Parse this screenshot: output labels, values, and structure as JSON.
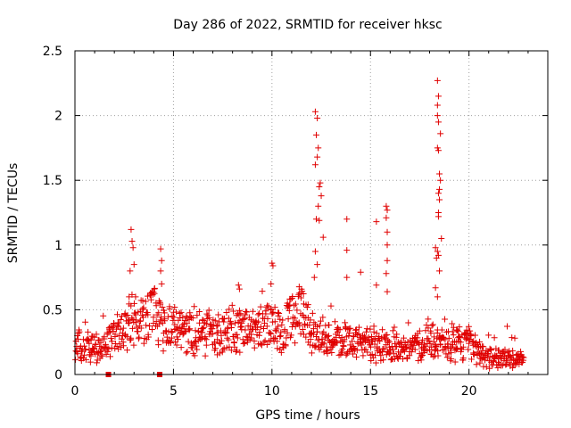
{
  "chart_data": {
    "type": "scatter",
    "title": "Day 286 of 2022, SRMTID for receiver hksc",
    "xlabel": "GPS time / hours",
    "ylabel": "SRMTID / TECUs",
    "xlim": [
      0,
      24
    ],
    "ylim": [
      0,
      2.5
    ],
    "x_ticks": [
      0,
      5,
      10,
      15,
      20
    ],
    "x_tick_labels": [
      "0",
      "5",
      "10",
      "15",
      "20"
    ],
    "y_ticks": [
      0,
      0.5,
      1,
      1.5,
      2,
      2.5
    ],
    "y_tick_labels": [
      "0",
      "0.5",
      "1",
      "1.5",
      "2",
      "2.5"
    ],
    "grid": true,
    "marker": "plus",
    "series_color": "#e00000",
    "baseline_profile": [
      [
        0.0,
        0.22
      ],
      [
        0.5,
        0.2
      ],
      [
        1.0,
        0.22
      ],
      [
        1.5,
        0.24
      ],
      [
        2.0,
        0.28
      ],
      [
        2.5,
        0.33
      ],
      [
        3.0,
        0.4
      ],
      [
        3.5,
        0.42
      ],
      [
        4.0,
        0.48
      ],
      [
        4.5,
        0.36
      ],
      [
        5.0,
        0.34
      ],
      [
        6.0,
        0.33
      ],
      [
        7.0,
        0.3
      ],
      [
        8.0,
        0.34
      ],
      [
        9.0,
        0.33
      ],
      [
        10.0,
        0.38
      ],
      [
        10.5,
        0.3
      ],
      [
        11.0,
        0.45
      ],
      [
        11.5,
        0.48
      ],
      [
        12.0,
        0.3
      ],
      [
        13.0,
        0.28
      ],
      [
        14.0,
        0.26
      ],
      [
        15.0,
        0.22
      ],
      [
        16.0,
        0.2
      ],
      [
        17.0,
        0.2
      ],
      [
        18.0,
        0.25
      ],
      [
        19.0,
        0.22
      ],
      [
        20.0,
        0.24
      ],
      [
        21.0,
        0.12
      ],
      [
        22.0,
        0.12
      ],
      [
        22.8,
        0.1
      ]
    ],
    "peaks": [
      {
        "x": 2.85,
        "y": 1.12
      },
      {
        "x": 2.9,
        "y": 1.03
      },
      {
        "x": 2.95,
        "y": 0.98
      },
      {
        "x": 2.8,
        "y": 0.8
      },
      {
        "x": 2.75,
        "y": 0.6
      },
      {
        "x": 3.0,
        "y": 0.85
      },
      {
        "x": 4.35,
        "y": 0.97
      },
      {
        "x": 4.4,
        "y": 0.88
      },
      {
        "x": 4.35,
        "y": 0.8
      },
      {
        "x": 4.4,
        "y": 0.7
      },
      {
        "x": 8.3,
        "y": 0.69
      },
      {
        "x": 8.35,
        "y": 0.66
      },
      {
        "x": 10.0,
        "y": 0.86
      },
      {
        "x": 10.05,
        "y": 0.84
      },
      {
        "x": 9.95,
        "y": 0.7
      },
      {
        "x": 12.2,
        "y": 2.03
      },
      {
        "x": 12.3,
        "y": 1.98
      },
      {
        "x": 12.25,
        "y": 1.85
      },
      {
        "x": 12.35,
        "y": 1.75
      },
      {
        "x": 12.3,
        "y": 1.68
      },
      {
        "x": 12.2,
        "y": 1.62
      },
      {
        "x": 12.45,
        "y": 1.48
      },
      {
        "x": 12.4,
        "y": 1.45
      },
      {
        "x": 12.5,
        "y": 1.38
      },
      {
        "x": 12.35,
        "y": 1.3
      },
      {
        "x": 12.25,
        "y": 1.2
      },
      {
        "x": 12.4,
        "y": 1.19
      },
      {
        "x": 12.6,
        "y": 1.06
      },
      {
        "x": 12.2,
        "y": 0.95
      },
      {
        "x": 12.3,
        "y": 0.85
      },
      {
        "x": 12.15,
        "y": 0.75
      },
      {
        "x": 13.8,
        "y": 1.2
      },
      {
        "x": 13.8,
        "y": 0.96
      },
      {
        "x": 13.8,
        "y": 0.75
      },
      {
        "x": 14.5,
        "y": 0.79
      },
      {
        "x": 15.3,
        "y": 1.18
      },
      {
        "x": 15.3,
        "y": 0.69
      },
      {
        "x": 15.8,
        "y": 1.3
      },
      {
        "x": 15.85,
        "y": 1.27
      },
      {
        "x": 15.8,
        "y": 1.21
      },
      {
        "x": 15.85,
        "y": 1.1
      },
      {
        "x": 15.85,
        "y": 1.0
      },
      {
        "x": 15.85,
        "y": 0.88
      },
      {
        "x": 15.8,
        "y": 0.78
      },
      {
        "x": 15.85,
        "y": 0.64
      },
      {
        "x": 18.4,
        "y": 2.27
      },
      {
        "x": 18.45,
        "y": 2.15
      },
      {
        "x": 18.4,
        "y": 2.08
      },
      {
        "x": 18.4,
        "y": 2.0
      },
      {
        "x": 18.45,
        "y": 1.95
      },
      {
        "x": 18.55,
        "y": 1.86
      },
      {
        "x": 18.4,
        "y": 1.75
      },
      {
        "x": 18.45,
        "y": 1.73
      },
      {
        "x": 18.5,
        "y": 1.55
      },
      {
        "x": 18.55,
        "y": 1.5
      },
      {
        "x": 18.5,
        "y": 1.43
      },
      {
        "x": 18.45,
        "y": 1.4
      },
      {
        "x": 18.5,
        "y": 1.35
      },
      {
        "x": 18.45,
        "y": 1.25
      },
      {
        "x": 18.45,
        "y": 1.22
      },
      {
        "x": 18.6,
        "y": 1.05
      },
      {
        "x": 18.3,
        "y": 0.98
      },
      {
        "x": 18.4,
        "y": 0.95
      },
      {
        "x": 18.35,
        "y": 0.9
      },
      {
        "x": 18.45,
        "y": 0.92
      },
      {
        "x": 18.5,
        "y": 0.8
      },
      {
        "x": 18.3,
        "y": 0.67
      },
      {
        "x": 18.4,
        "y": 0.6
      }
    ],
    "outliers_low": [
      {
        "x": 1.7,
        "y": 0.0
      },
      {
        "x": 4.3,
        "y": 0.0
      }
    ],
    "point_count": 1100
  }
}
